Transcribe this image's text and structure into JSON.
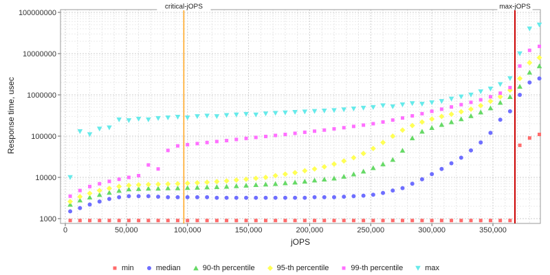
{
  "chart_data": {
    "type": "scatter",
    "title": "",
    "xlabel": "jOPS",
    "ylabel": "Response time, usec",
    "x_axis": {
      "min": 0,
      "max": 390000,
      "minor_step": 10000,
      "ticks": [
        0,
        50000,
        100000,
        150000,
        200000,
        250000,
        300000,
        350000
      ],
      "tick_labels": [
        "0",
        "50,000",
        "100,000",
        "150,000",
        "200,000",
        "250,000",
        "300,000",
        "350,000"
      ]
    },
    "y_axis": {
      "scale": "log",
      "min": 1000,
      "max": 100000000,
      "ticks": [
        1000,
        10000,
        100000,
        1000000,
        10000000,
        100000000
      ],
      "tick_labels": [
        "1000",
        "10000",
        "100000",
        "1000000",
        "10000000",
        "100000000"
      ]
    },
    "grid": true,
    "legend_position": "bottom",
    "x": [
      4000,
      12000,
      20000,
      28000,
      36000,
      44000,
      52000,
      60000,
      68000,
      76000,
      84000,
      92000,
      100000,
      108000,
      116000,
      124000,
      132000,
      140000,
      148000,
      156000,
      164000,
      172000,
      180000,
      188000,
      196000,
      204000,
      212000,
      220000,
      228000,
      236000,
      244000,
      252000,
      260000,
      268000,
      276000,
      284000,
      292000,
      300000,
      308000,
      316000,
      324000,
      332000,
      340000,
      348000,
      356000,
      364000,
      372000,
      380000,
      388000
    ],
    "series": [
      {
        "name": "min",
        "marker": "square",
        "color": "#ff6b6b",
        "values": [
          900,
          900,
          900,
          900,
          900,
          900,
          900,
          900,
          900,
          900,
          900,
          900,
          900,
          900,
          900,
          900,
          900,
          900,
          900,
          900,
          900,
          900,
          900,
          900,
          900,
          900,
          900,
          900,
          900,
          900,
          900,
          900,
          900,
          900,
          900,
          900,
          900,
          900,
          900,
          900,
          900,
          900,
          900,
          900,
          900,
          900,
          60000,
          90000,
          110000
        ]
      },
      {
        "name": "median",
        "marker": "circle",
        "color": "#6e6eff",
        "values": [
          1500,
          1800,
          2200,
          2600,
          3000,
          3300,
          3500,
          3500,
          3500,
          3400,
          3300,
          3300,
          3300,
          3300,
          3300,
          3200,
          3200,
          3200,
          3200,
          3200,
          3200,
          3200,
          3200,
          3200,
          3200,
          3300,
          3300,
          3300,
          3400,
          3500,
          3600,
          3800,
          4200,
          4800,
          5500,
          7000,
          9000,
          12000,
          16000,
          22000,
          30000,
          45000,
          70000,
          120000,
          250000,
          400000,
          1000000,
          2000000,
          2500000
        ]
      },
      {
        "name": "90-th percentile",
        "marker": "triangle-up",
        "color": "#66d966",
        "values": [
          2200,
          2800,
          3300,
          3800,
          4300,
          4800,
          5200,
          5300,
          5400,
          5400,
          5500,
          5500,
          5600,
          5700,
          5800,
          5900,
          6000,
          6200,
          6400,
          6600,
          6800,
          7000,
          7300,
          7600,
          8000,
          8500,
          9000,
          9500,
          10500,
          12000,
          14000,
          17000,
          21000,
          27000,
          45000,
          90000,
          130000,
          160000,
          190000,
          220000,
          260000,
          310000,
          380000,
          480000,
          650000,
          900000,
          1600000,
          3500000,
          5000000
        ]
      },
      {
        "name": "95-th percentile",
        "marker": "diamond",
        "color": "#ffff55",
        "values": [
          2600,
          3400,
          4100,
          4800,
          5400,
          6000,
          6400,
          6600,
          6700,
          6800,
          6900,
          7000,
          7200,
          7400,
          7600,
          7900,
          8200,
          8600,
          9000,
          9500,
          10000,
          11000,
          12000,
          13000,
          14500,
          16000,
          18000,
          21000,
          25000,
          30000,
          38000,
          50000,
          70000,
          100000,
          140000,
          180000,
          220000,
          260000,
          300000,
          340000,
          390000,
          450000,
          550000,
          700000,
          900000,
          1300000,
          2500000,
          6000000,
          8000000
        ]
      },
      {
        "name": "99-th percentile",
        "marker": "square",
        "color": "#ff6fff",
        "values": [
          3500,
          4800,
          6000,
          7000,
          8000,
          9000,
          10000,
          11000,
          20000,
          16000,
          45000,
          58000,
          62000,
          66000,
          70000,
          74000,
          78000,
          83000,
          88000,
          93000,
          98000,
          104000,
          110000,
          117000,
          124000,
          132000,
          140000,
          150000,
          160000,
          172000,
          185000,
          200000,
          220000,
          245000,
          275000,
          310000,
          350000,
          400000,
          450000,
          510000,
          580000,
          660000,
          760000,
          900000,
          1100000,
          1500000,
          5000000,
          12000000,
          15000000
        ]
      },
      {
        "name": "max",
        "marker": "triangle-down",
        "color": "#66eaea",
        "values": [
          10000,
          130000,
          110000,
          150000,
          160000,
          250000,
          240000,
          260000,
          250000,
          270000,
          280000,
          290000,
          280000,
          300000,
          310000,
          300000,
          320000,
          330000,
          340000,
          330000,
          350000,
          360000,
          370000,
          380000,
          390000,
          400000,
          410000,
          420000,
          440000,
          460000,
          480000,
          500000,
          550000,
          520000,
          580000,
          620000,
          600000,
          650000,
          700000,
          800000,
          900000,
          1000000,
          1200000,
          1400000,
          1800000,
          2500000,
          10000000,
          40000000,
          50000000
        ]
      }
    ],
    "annotations": [
      {
        "label": "critical-jOPS",
        "x": 97000,
        "color": "#ffa319",
        "width": 1.5
      },
      {
        "label": "max-jOPS",
        "x": 368000,
        "color": "#cc0000",
        "width": 2
      }
    ]
  }
}
